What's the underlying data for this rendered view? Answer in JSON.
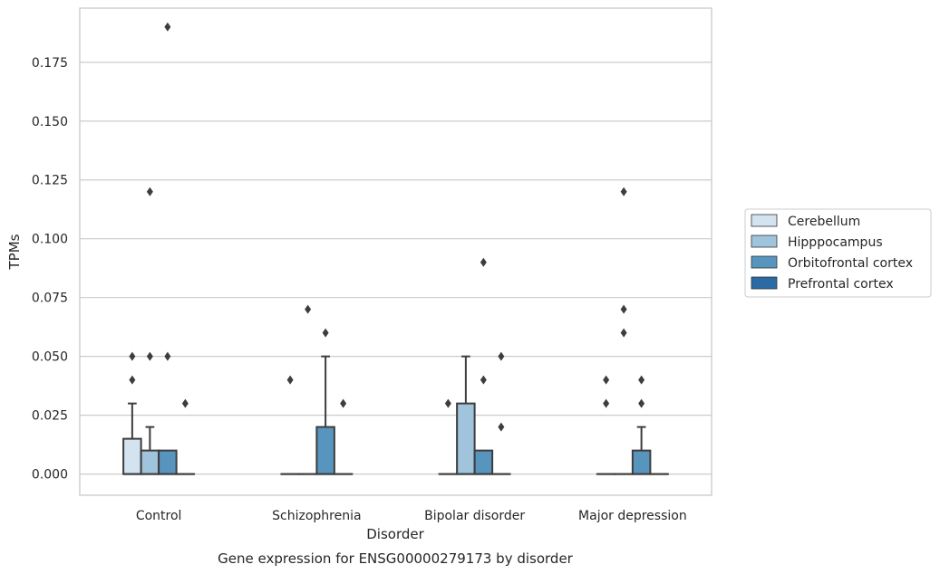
{
  "chart_data": {
    "type": "box",
    "title": "Gene expression for ENSG00000279173 by disorder",
    "xlabel": "Disorder",
    "ylabel": "TPMs",
    "ylim": [
      -0.009,
      0.198
    ],
    "yticks": [
      0.0,
      0.025,
      0.05,
      0.075,
      0.1,
      0.125,
      0.15,
      0.175
    ],
    "ytick_labels": [
      "0.000",
      "0.025",
      "0.050",
      "0.075",
      "0.100",
      "0.125",
      "0.150",
      "0.175"
    ],
    "grid": true,
    "legend_position": "right",
    "categories": [
      "Control",
      "Schizophrenia",
      "Bipolar disorder",
      "Major depression"
    ],
    "series": [
      {
        "name": "Cerebellum",
        "color": "#d4e3f0",
        "boxes": [
          {
            "q1": 0.0,
            "median": 0.0,
            "q3": 0.015,
            "whisker_low": 0.0,
            "whisker_high": 0.03,
            "outliers": [
              0.04,
              0.05
            ]
          },
          {
            "q1": 0.0,
            "median": 0.0,
            "q3": 0.0,
            "whisker_low": 0.0,
            "whisker_high": 0.0,
            "outliers": [
              0.04
            ]
          },
          {
            "q1": 0.0,
            "median": 0.0,
            "q3": 0.0,
            "whisker_low": 0.0,
            "whisker_high": 0.0,
            "outliers": [
              0.03
            ]
          },
          {
            "q1": 0.0,
            "median": 0.0,
            "q3": 0.0,
            "whisker_low": 0.0,
            "whisker_high": 0.0,
            "outliers": [
              0.03,
              0.04
            ]
          }
        ]
      },
      {
        "name": "Hipppocampus",
        "color": "#9fc4dc",
        "boxes": [
          {
            "q1": 0.0,
            "median": 0.0,
            "q3": 0.01,
            "whisker_low": 0.0,
            "whisker_high": 0.02,
            "outliers": [
              0.05,
              0.12
            ]
          },
          {
            "q1": 0.0,
            "median": 0.0,
            "q3": 0.0,
            "whisker_low": 0.0,
            "whisker_high": 0.0,
            "outliers": [
              0.07
            ]
          },
          {
            "q1": 0.0,
            "median": 0.0,
            "q3": 0.03,
            "whisker_low": 0.0,
            "whisker_high": 0.05,
            "outliers": []
          },
          {
            "q1": 0.0,
            "median": 0.0,
            "q3": 0.0,
            "whisker_low": 0.0,
            "whisker_high": 0.0,
            "outliers": [
              0.12,
              0.07,
              0.06
            ]
          }
        ]
      },
      {
        "name": "Orbitofrontal cortex",
        "color": "#5795bf",
        "boxes": [
          {
            "q1": 0.0,
            "median": 0.0,
            "q3": 0.01,
            "whisker_low": 0.0,
            "whisker_high": 0.01,
            "outliers": [
              0.05,
              0.19
            ]
          },
          {
            "q1": 0.0,
            "median": 0.0,
            "q3": 0.02,
            "whisker_low": 0.0,
            "whisker_high": 0.05,
            "outliers": [
              0.06
            ]
          },
          {
            "q1": 0.0,
            "median": 0.0,
            "q3": 0.01,
            "whisker_low": 0.0,
            "whisker_high": 0.01,
            "outliers": [
              0.04,
              0.09
            ]
          },
          {
            "q1": 0.0,
            "median": 0.0,
            "q3": 0.01,
            "whisker_low": 0.0,
            "whisker_high": 0.02,
            "outliers": [
              0.04,
              0.03
            ]
          }
        ]
      },
      {
        "name": "Prefrontal cortex",
        "color": "#2b6aa5",
        "boxes": [
          {
            "q1": 0.0,
            "median": 0.0,
            "q3": 0.0,
            "whisker_low": 0.0,
            "whisker_high": 0.0,
            "outliers": [
              0.03
            ]
          },
          {
            "q1": 0.0,
            "median": 0.0,
            "q3": 0.0,
            "whisker_low": 0.0,
            "whisker_high": 0.0,
            "outliers": [
              0.03
            ]
          },
          {
            "q1": 0.0,
            "median": 0.0,
            "q3": 0.0,
            "whisker_low": 0.0,
            "whisker_high": 0.0,
            "outliers": [
              0.05,
              0.02
            ]
          },
          {
            "q1": 0.0,
            "median": 0.0,
            "q3": 0.0,
            "whisker_low": 0.0,
            "whisker_high": 0.0,
            "outliers": []
          }
        ]
      }
    ]
  }
}
